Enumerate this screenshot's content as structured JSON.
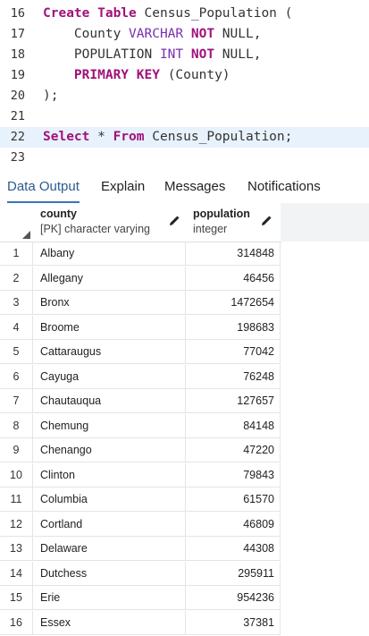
{
  "editor": {
    "lines": [
      {
        "no": "16",
        "parts": [
          [
            "kw",
            "Create Table "
          ],
          [
            "pl",
            "Census_Population ("
          ]
        ]
      },
      {
        "no": "17",
        "parts": [
          [
            "pl",
            "    County "
          ],
          [
            "ty",
            "VARCHAR "
          ],
          [
            "kw",
            "NOT "
          ],
          [
            "pl",
            "NULL,"
          ]
        ]
      },
      {
        "no": "18",
        "parts": [
          [
            "pl",
            "    POPULATION "
          ],
          [
            "ty",
            "INT "
          ],
          [
            "kw",
            "NOT "
          ],
          [
            "pl",
            "NULL,"
          ]
        ]
      },
      {
        "no": "19",
        "parts": [
          [
            "pl",
            "    "
          ],
          [
            "kw",
            "PRIMARY KEY "
          ],
          [
            "pl",
            "(County)"
          ]
        ]
      },
      {
        "no": "20",
        "parts": [
          [
            "pl",
            ");"
          ]
        ]
      },
      {
        "no": "21",
        "parts": []
      },
      {
        "no": "22",
        "parts": [
          [
            "kw",
            "Select "
          ],
          [
            "pl",
            "* "
          ],
          [
            "kw",
            "From "
          ],
          [
            "pl",
            "Census_Population;"
          ]
        ],
        "active": true
      },
      {
        "no": "23",
        "parts": []
      }
    ]
  },
  "tabs": [
    {
      "label": "Data Output",
      "active": true
    },
    {
      "label": "Explain",
      "active": false
    },
    {
      "label": "Messages",
      "active": false
    },
    {
      "label": "Notifications",
      "active": false
    }
  ],
  "grid": {
    "columns": [
      {
        "name": "county",
        "type": "[PK] character varying"
      },
      {
        "name": "population",
        "type": "integer"
      }
    ],
    "rows": [
      {
        "n": "1",
        "county": "Albany",
        "population": "314848"
      },
      {
        "n": "2",
        "county": "Allegany",
        "population": "46456"
      },
      {
        "n": "3",
        "county": "Bronx",
        "population": "1472654"
      },
      {
        "n": "4",
        "county": "Broome",
        "population": "198683"
      },
      {
        "n": "5",
        "county": "Cattaraugus",
        "population": "77042"
      },
      {
        "n": "6",
        "county": "Cayuga",
        "population": "76248"
      },
      {
        "n": "7",
        "county": "Chautauqua",
        "population": "127657"
      },
      {
        "n": "8",
        "county": "Chemung",
        "population": "84148"
      },
      {
        "n": "9",
        "county": "Chenango",
        "population": "47220"
      },
      {
        "n": "10",
        "county": "Clinton",
        "population": "79843"
      },
      {
        "n": "11",
        "county": "Columbia",
        "population": "61570"
      },
      {
        "n": "12",
        "county": "Cortland",
        "population": "46809"
      },
      {
        "n": "13",
        "county": "Delaware",
        "population": "44308"
      },
      {
        "n": "14",
        "county": "Dutchess",
        "population": "295911"
      },
      {
        "n": "15",
        "county": "Erie",
        "population": "954236"
      },
      {
        "n": "16",
        "county": "Essex",
        "population": "37381"
      }
    ]
  },
  "icons": {
    "column_edit": "pencil-icon",
    "select_all": "triangle-corner-icon"
  },
  "colors": {
    "keyword": "#a0117a",
    "type": "#7a2fae",
    "active_line": "#e8f2fc",
    "active_tab_underline": "#3775b7"
  }
}
